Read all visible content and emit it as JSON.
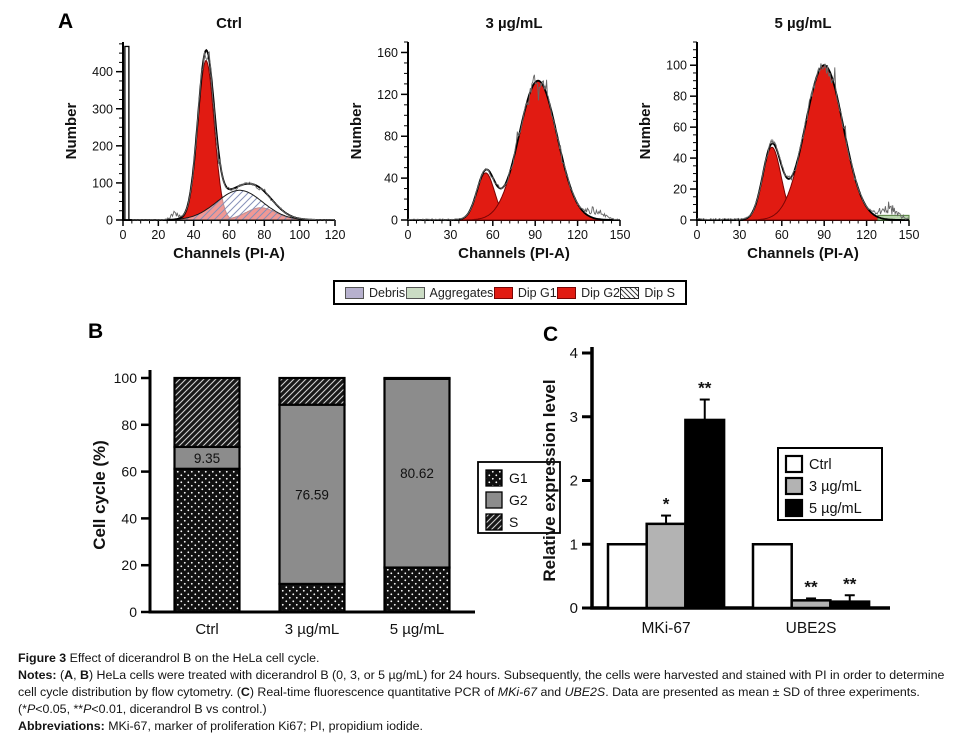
{
  "panels": {
    "a_label": "A",
    "b_label": "B",
    "c_label": "C"
  },
  "colors": {
    "red": "#e11b12",
    "red_border": "#7a0505",
    "debris": "#b7b1ce",
    "aggregates": "#cbdcc4",
    "aggregates_band": "#b9d6ad",
    "g2_gray": "#8c8c8c",
    "bar_gray": "#b3b3b3",
    "black": "#000000",
    "white": "#ffffff"
  },
  "legend_a": {
    "items": [
      {
        "label": "Debris",
        "swatch": "debris"
      },
      {
        "label": "Aggregates",
        "swatch": "aggregates"
      },
      {
        "label": "Dip G1",
        "swatch": "red"
      },
      {
        "label": "Dip G2",
        "swatch": "red"
      },
      {
        "label": "Dip S",
        "swatch": "hatch"
      }
    ]
  },
  "chart_data": [
    {
      "type": "area",
      "subtype": "flow-histogram",
      "title": "Ctrl",
      "xlabel": "Channels (PI-A)",
      "ylabel": "Number",
      "xlim": [
        0,
        120
      ],
      "xticks": [
        0,
        20,
        40,
        60,
        80,
        100,
        120
      ],
      "xminor": 5,
      "ylim": [
        0,
        480
      ],
      "yticks": [
        0,
        100,
        200,
        300,
        400
      ],
      "yminor": 25,
      "components": [
        {
          "name": "Dip G1",
          "shape": "gaussian",
          "mu": 47,
          "sigma": 4.6,
          "peak": 430,
          "style": "red"
        },
        {
          "name": "Dip G2",
          "shape": "gaussian",
          "mu": 78,
          "sigma": 8.5,
          "peak": 33,
          "style": "red"
        },
        {
          "name": "Dip S",
          "shape": "gaussian",
          "mu": 66,
          "sigma": 13,
          "peak": 80,
          "style": "hatch"
        },
        {
          "name": "Debris",
          "shape": "spike",
          "x": 2.2,
          "peak": 468,
          "style": "outline"
        }
      ],
      "raw_bumps": [
        {
          "mu": 29,
          "sigma": 2.2,
          "peak": 16
        }
      ]
    },
    {
      "type": "area",
      "subtype": "flow-histogram",
      "title": "3 µg/mL",
      "xlabel": "Channels (PI-A)",
      "ylabel": "Number",
      "xlim": [
        0,
        150
      ],
      "xticks": [
        0,
        30,
        60,
        90,
        120,
        150
      ],
      "xminor": 6,
      "ylim": [
        0,
        170
      ],
      "yticks": [
        0,
        40,
        80,
        120,
        160
      ],
      "yminor": 10,
      "components": [
        {
          "name": "Dip G1",
          "shape": "gaussian",
          "mu": 55,
          "sigma": 6.2,
          "peak": 45,
          "style": "red"
        },
        {
          "name": "Dip G2",
          "shape": "gaussian",
          "mu": 92,
          "sigma": 13.5,
          "peak": 133,
          "style": "red"
        }
      ],
      "raw_bumps": [
        {
          "mu": 133,
          "sigma": 5,
          "peak": 9
        }
      ]
    },
    {
      "type": "area",
      "subtype": "flow-histogram",
      "title": "5 µg/mL",
      "xlabel": "Channels (PI-A)",
      "ylabel": "Number",
      "xlim": [
        0,
        150
      ],
      "xticks": [
        0,
        30,
        60,
        90,
        120,
        150
      ],
      "xminor": 6,
      "ylim": [
        0,
        115
      ],
      "yticks": [
        0,
        20,
        40,
        60,
        80,
        100
      ],
      "yminor": 5,
      "components": [
        {
          "name": "Dip G1",
          "shape": "gaussian",
          "mu": 53,
          "sigma": 6.5,
          "peak": 47,
          "style": "red"
        },
        {
          "name": "Dip G2",
          "shape": "gaussian",
          "mu": 90,
          "sigma": 13.5,
          "peak": 100,
          "style": "red"
        },
        {
          "name": "Aggregates",
          "shape": "band",
          "from": 128,
          "to": 152,
          "peak": 3,
          "style": "green"
        }
      ],
      "raw_bumps": [
        {
          "mu": 135,
          "sigma": 6,
          "peak": 8
        }
      ]
    },
    {
      "type": "bar",
      "subtype": "stacked",
      "ylabel": "Cell cycle (%)",
      "categories": [
        "Ctrl",
        "3 µg/mL",
        "5 µg/mL"
      ],
      "series": [
        {
          "name": "G1",
          "values": [
            61.2,
            12.0,
            19.0
          ],
          "style": "dots"
        },
        {
          "name": "G2",
          "values": [
            9.35,
            76.59,
            80.62
          ],
          "style": "gray"
        },
        {
          "name": "S",
          "values": [
            29.45,
            11.41,
            0.38
          ],
          "style": "hatch"
        }
      ],
      "value_labels": {
        "series": "G2",
        "texts": [
          "9.35",
          "76.59",
          "80.62"
        ]
      },
      "ylim": [
        0,
        100
      ],
      "yticks": [
        0,
        20,
        40,
        60,
        80,
        100
      ],
      "legend": [
        "G1",
        "G2",
        "S"
      ]
    },
    {
      "type": "bar",
      "subtype": "grouped",
      "ylabel": "Relative expression level",
      "groups": [
        "MKi-67",
        "UBE2S"
      ],
      "series": [
        {
          "name": "Ctrl",
          "fill": "white",
          "values": [
            1.0,
            1.0
          ],
          "errors": [
            0,
            0
          ],
          "sig": [
            "",
            ""
          ]
        },
        {
          "name": "3 µg/mL",
          "fill": "gray",
          "values": [
            1.32,
            0.12
          ],
          "errors": [
            0.13,
            0.03
          ],
          "sig": [
            "*",
            "**"
          ]
        },
        {
          "name": "5 µg/mL",
          "fill": "black",
          "values": [
            2.95,
            0.1
          ],
          "errors": [
            0.32,
            0.1
          ],
          "sig": [
            "**",
            "**"
          ]
        }
      ],
      "ylim": [
        0,
        4
      ],
      "yticks": [
        0,
        1,
        2,
        3,
        4
      ],
      "legend": [
        "Ctrl",
        "3 µg/mL",
        "5 µg/mL"
      ]
    }
  ],
  "caption": {
    "lines": [
      [
        {
          "t": "Figure 3 ",
          "b": 1
        },
        {
          "t": "Effect of dicerandrol B on the HeLa cell cycle."
        }
      ],
      [
        {
          "t": "Notes: ",
          "b": 1
        },
        {
          "t": "("
        },
        {
          "t": "A",
          "b": 1
        },
        {
          "t": ", "
        },
        {
          "t": "B",
          "b": 1
        },
        {
          "t": ") HeLa cells were treated with dicerandrol B (0, 3, or 5 µg/mL) for 24 hours. Subsequently, the cells were harvested and stained with PI in order to determine"
        }
      ],
      [
        {
          "t": "cell cycle distribution by flow cytometry. ("
        },
        {
          "t": "C",
          "b": 1
        },
        {
          "t": ") Real-time fluorescence quantitative PCR of "
        },
        {
          "t": "MKi-67",
          "i": 1
        },
        {
          "t": " and "
        },
        {
          "t": "UBE2S",
          "i": 1
        },
        {
          "t": ". Data are presented as mean ± SD of three experiments."
        }
      ],
      [
        {
          "t": "(*"
        },
        {
          "t": "P",
          "i": 1
        },
        {
          "t": "<0.05, **"
        },
        {
          "t": "P",
          "i": 1
        },
        {
          "t": "<0.01, dicerandrol B vs control.)"
        }
      ],
      [
        {
          "t": "Abbreviations: ",
          "b": 1
        },
        {
          "t": "MKi-67, marker of proliferation Ki67; PI, propidium iodide."
        }
      ]
    ]
  }
}
